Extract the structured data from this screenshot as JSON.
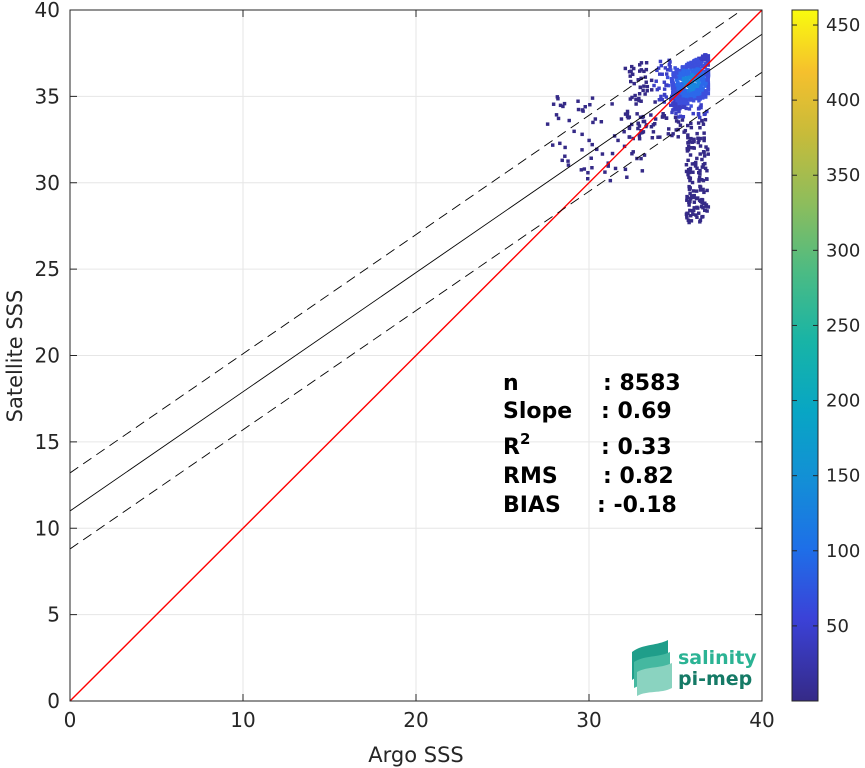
{
  "chart_data": {
    "type": "scatter",
    "subtype": "2d-density-histogram",
    "title": "",
    "xlabel": "Argo SSS",
    "ylabel": "Satellite SSS",
    "xlim": [
      0,
      40
    ],
    "ylim": [
      0,
      40
    ],
    "xticks": [
      0,
      10,
      20,
      30,
      40
    ],
    "yticks": [
      0,
      5,
      10,
      15,
      20,
      25,
      30,
      35,
      40
    ],
    "grid": true,
    "colormap": "parula",
    "colorbar": {
      "min": 0,
      "max": 460,
      "ticks": [
        50,
        100,
        150,
        200,
        250,
        300,
        350,
        400,
        450
      ]
    },
    "lines": [
      {
        "role": "identity",
        "color": "#ff0000",
        "style": "solid",
        "points": [
          [
            0,
            0
          ],
          [
            40,
            40
          ]
        ]
      },
      {
        "role": "fit",
        "color": "#000000",
        "style": "solid",
        "points": [
          [
            0,
            11.0
          ],
          [
            40,
            38.6
          ]
        ]
      },
      {
        "role": "fit-upper",
        "color": "#000000",
        "style": "dashed",
        "points": [
          [
            0,
            13.2
          ],
          [
            40,
            40.8
          ]
        ]
      },
      {
        "role": "fit-lower",
        "color": "#000000",
        "style": "dashed",
        "points": [
          [
            0,
            8.8
          ],
          [
            40,
            36.4
          ]
        ]
      }
    ],
    "density_cloud": {
      "x_range": [
        27.5,
        36.8
      ],
      "y_range": [
        26.5,
        37.3
      ],
      "peak": [
        35.8,
        35.7
      ]
    },
    "stats": [
      {
        "label": "n",
        "value": ": 8583"
      },
      {
        "label": "Slope",
        "value": ": 0.69"
      },
      {
        "label": "R",
        "superscript": "2",
        "value": ": 0.33"
      },
      {
        "label": "RMS",
        "value": ": 0.82"
      },
      {
        "label": "BIAS",
        "value": ": -0.18"
      }
    ]
  },
  "logo": {
    "line1": "salinity",
    "line2": "pi-mep"
  }
}
